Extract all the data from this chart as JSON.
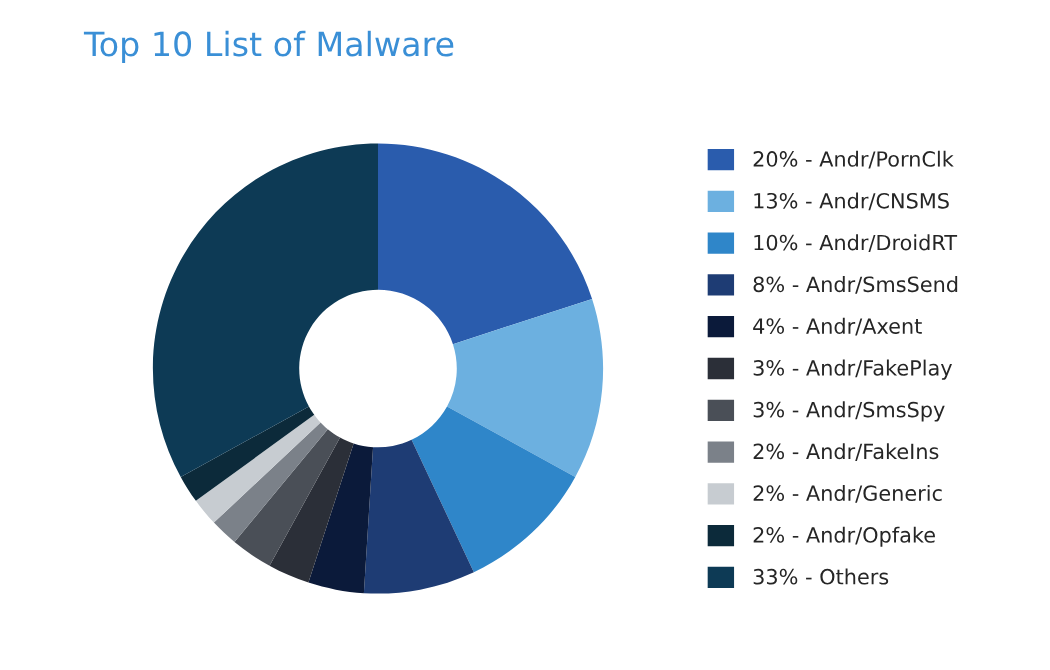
{
  "chart_data": {
    "type": "donut",
    "title": "Top 10 List of Malware",
    "categories": [
      "20% - Andr/PornClk",
      "13% - Andr/CNSMS",
      "10% - Andr/DroidRT",
      "8% - Andr/SmsSend",
      "4% - Andr/Axent",
      "3% - Andr/FakePlay",
      "3% - Andr/SmsSpy",
      "2% - Andr/FakeIns",
      "2% - Andr/Generic",
      "2% - Andr/Opfake",
      "33% - Others"
    ],
    "values": [
      20,
      13,
      10,
      8,
      4,
      3,
      3,
      2,
      2,
      2,
      33
    ],
    "colors": [
      "#2a5cad",
      "#6cb0e0",
      "#2f86c9",
      "#1e3c74",
      "#0b1a3a",
      "#2b2f38",
      "#4a4f57",
      "#7b8189",
      "#c7ccd1",
      "#0c2a3a",
      "#0d3a55"
    ],
    "legend": "right"
  }
}
